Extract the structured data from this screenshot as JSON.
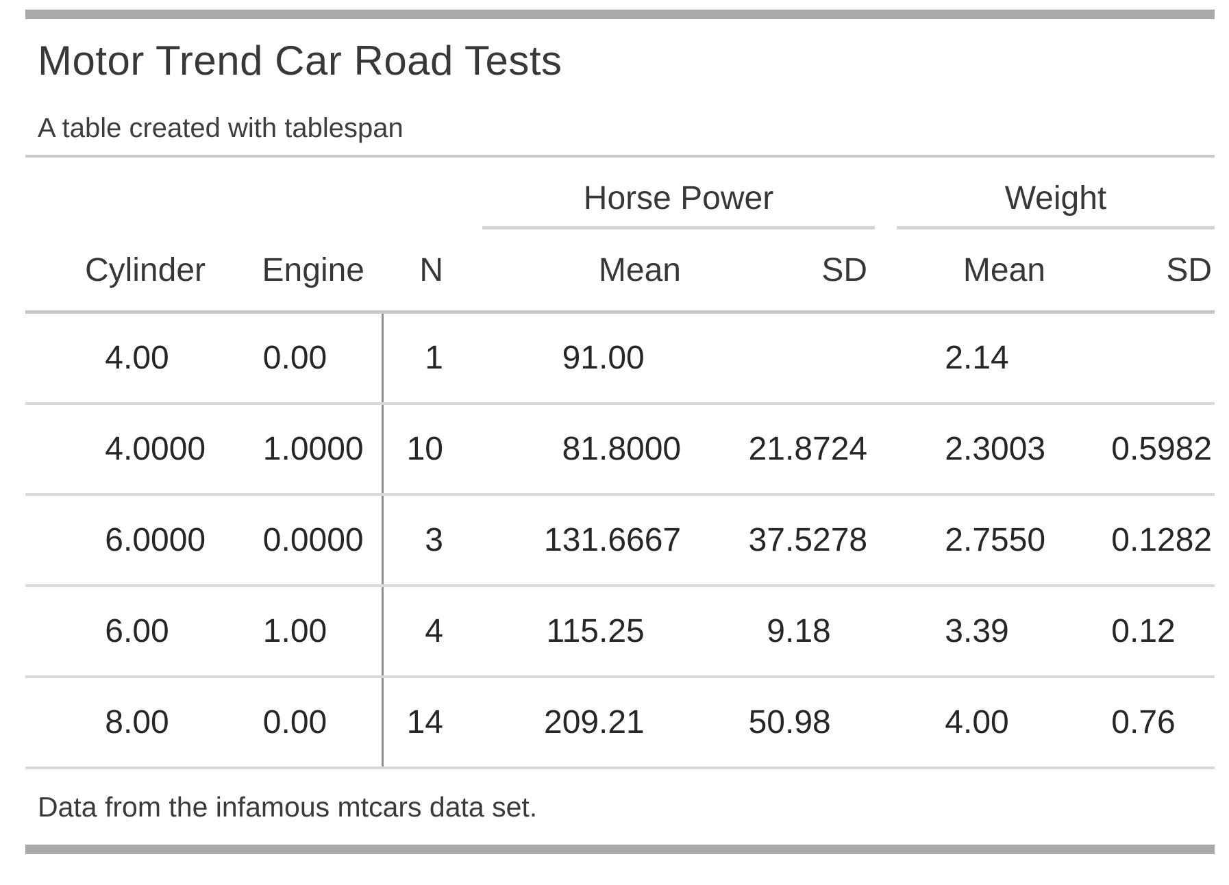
{
  "chart_data": {
    "type": "table",
    "title": "Motor Trend Car Road Tests",
    "subtitle": "A table created with tablespan",
    "spanners": [
      {
        "label": "Horse Power",
        "columns": [
          "Mean",
          "SD"
        ]
      },
      {
        "label": "Weight",
        "columns": [
          "Mean",
          "SD"
        ]
      }
    ],
    "columns": [
      "Cylinder",
      "Engine",
      "N",
      "Mean",
      "SD",
      "Mean",
      "SD"
    ],
    "rows": [
      [
        "4.00",
        "0.00",
        "1",
        "91.00",
        "",
        "2.14",
        ""
      ],
      [
        "4.0000",
        "1.0000",
        "10",
        "81.8000",
        "21.8724",
        "2.3003",
        "0.5982"
      ],
      [
        "6.0000",
        "0.0000",
        "3",
        "131.6667",
        "37.5278",
        "2.7550",
        "0.1282"
      ],
      [
        "6.00",
        "1.00",
        "4",
        "115.25",
        "9.18",
        "3.39",
        "0.12"
      ],
      [
        "8.00",
        "0.00",
        "14",
        "209.21",
        "50.98",
        "4.00",
        "0.76"
      ]
    ],
    "footnote": "Data from the infamous mtcars data set.",
    "layout": {
      "alignment": "decimal",
      "grid": "horizontal-rules-only",
      "divider_after_column": "Engine"
    },
    "colors": {
      "text": "#2a2a2a",
      "heading_text": "#373737",
      "thick_rule": "#a9a9a9",
      "header_rule": "#c8c8c8",
      "row_rule": "#d9d9d9",
      "spanner_rule": "#d4d4d4",
      "column_divider": "#8f8f8f",
      "background": "#ffffff"
    }
  }
}
